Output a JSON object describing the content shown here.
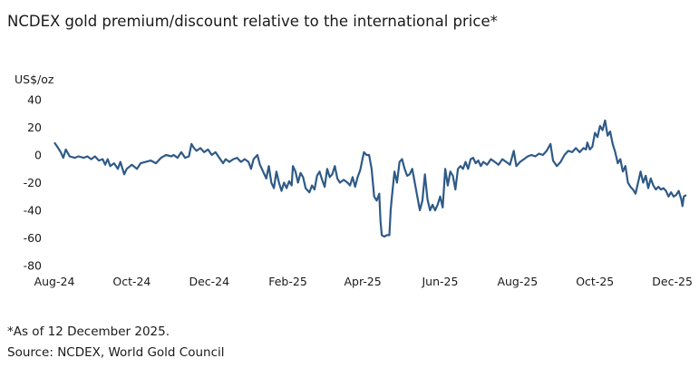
{
  "title": "NCDEX gold premium/discount relative to the international price*",
  "chart_data": {
    "type": "line",
    "title": "NCDEX gold premium/discount relative to the international price*",
    "ylabel": "US$/oz",
    "xlabel": "",
    "ylim": [
      -80,
      40
    ],
    "yticks": [
      40,
      20,
      0,
      -20,
      -40,
      -60,
      -80
    ],
    "xlim": [
      "2024-08-01",
      "2025-12-12"
    ],
    "xtick_labels": [
      "Aug-24",
      "Oct-24",
      "Dec-24",
      "Feb-25",
      "Apr-25",
      "Jun-25",
      "Aug-25",
      "Oct-25",
      "Dec-25"
    ],
    "xtick_dates": [
      "2024-08-01",
      "2024-10-01",
      "2024-12-01",
      "2025-02-01",
      "2025-04-01",
      "2025-06-01",
      "2025-08-01",
      "2025-10-01",
      "2025-12-01"
    ],
    "grid": false,
    "line_color": "#2e5a87",
    "series": [
      {
        "name": "",
        "points": [
          [
            "2024-08-01",
            9
          ],
          [
            "2024-08-04",
            5
          ],
          [
            "2024-08-06",
            2
          ],
          [
            "2024-08-08",
            -2
          ],
          [
            "2024-08-10",
            4
          ],
          [
            "2024-08-13",
            -1
          ],
          [
            "2024-08-17",
            -2
          ],
          [
            "2024-08-20",
            -1
          ],
          [
            "2024-08-24",
            -2
          ],
          [
            "2024-08-27",
            -1
          ],
          [
            "2024-08-30",
            -3
          ],
          [
            "2024-09-02",
            -1
          ],
          [
            "2024-09-05",
            -4
          ],
          [
            "2024-09-08",
            -3
          ],
          [
            "2024-09-10",
            -7
          ],
          [
            "2024-09-12",
            -3
          ],
          [
            "2024-09-14",
            -8
          ],
          [
            "2024-09-17",
            -6
          ],
          [
            "2024-09-20",
            -10
          ],
          [
            "2024-09-22",
            -5
          ],
          [
            "2024-09-25",
            -14
          ],
          [
            "2024-09-27",
            -10
          ],
          [
            "2024-10-01",
            -7
          ],
          [
            "2024-10-05",
            -10
          ],
          [
            "2024-10-08",
            -6
          ],
          [
            "2024-10-12",
            -5
          ],
          [
            "2024-10-16",
            -4
          ],
          [
            "2024-10-20",
            -6
          ],
          [
            "2024-10-24",
            -2
          ],
          [
            "2024-10-28",
            0
          ],
          [
            "2024-11-01",
            -1
          ],
          [
            "2024-11-03",
            0
          ],
          [
            "2024-11-06",
            -2
          ],
          [
            "2024-11-09",
            2
          ],
          [
            "2024-11-12",
            -2
          ],
          [
            "2024-11-15",
            -1
          ],
          [
            "2024-11-17",
            8
          ],
          [
            "2024-11-19",
            5
          ],
          [
            "2024-11-21",
            3
          ],
          [
            "2024-11-24",
            5
          ],
          [
            "2024-11-27",
            2
          ],
          [
            "2024-11-30",
            4
          ],
          [
            "2024-12-03",
            0
          ],
          [
            "2024-12-06",
            2
          ],
          [
            "2024-12-09",
            -2
          ],
          [
            "2024-12-12",
            -6
          ],
          [
            "2024-12-14",
            -3
          ],
          [
            "2024-12-17",
            -5
          ],
          [
            "2024-12-20",
            -3
          ],
          [
            "2024-12-23",
            -2
          ],
          [
            "2024-12-26",
            -5
          ],
          [
            "2024-12-29",
            -3
          ],
          [
            "2025-01-01",
            -5
          ],
          [
            "2025-01-03",
            -10
          ],
          [
            "2025-01-05",
            -3
          ],
          [
            "2025-01-08",
            0
          ],
          [
            "2025-01-10",
            -7
          ],
          [
            "2025-01-13",
            -13
          ],
          [
            "2025-01-15",
            -17
          ],
          [
            "2025-01-17",
            -8
          ],
          [
            "2025-01-19",
            -20
          ],
          [
            "2025-01-21",
            -24
          ],
          [
            "2025-01-23",
            -12
          ],
          [
            "2025-01-25",
            -20
          ],
          [
            "2025-01-27",
            -26
          ],
          [
            "2025-01-29",
            -20
          ],
          [
            "2025-01-31",
            -24
          ],
          [
            "2025-02-02",
            -19
          ],
          [
            "2025-02-04",
            -22
          ],
          [
            "2025-02-05",
            -8
          ],
          [
            "2025-02-07",
            -12
          ],
          [
            "2025-02-09",
            -20
          ],
          [
            "2025-02-11",
            -13
          ],
          [
            "2025-02-13",
            -16
          ],
          [
            "2025-02-15",
            -24
          ],
          [
            "2025-02-18",
            -27
          ],
          [
            "2025-02-20",
            -22
          ],
          [
            "2025-02-22",
            -25
          ],
          [
            "2025-02-24",
            -15
          ],
          [
            "2025-02-26",
            -12
          ],
          [
            "2025-02-28",
            -18
          ],
          [
            "2025-03-02",
            -23
          ],
          [
            "2025-03-04",
            -10
          ],
          [
            "2025-03-06",
            -16
          ],
          [
            "2025-03-08",
            -14
          ],
          [
            "2025-03-10",
            -8
          ],
          [
            "2025-03-12",
            -17
          ],
          [
            "2025-03-14",
            -20
          ],
          [
            "2025-03-17",
            -18
          ],
          [
            "2025-03-20",
            -20
          ],
          [
            "2025-03-22",
            -22
          ],
          [
            "2025-03-24",
            -16
          ],
          [
            "2025-03-26",
            -23
          ],
          [
            "2025-03-28",
            -16
          ],
          [
            "2025-03-30",
            -11
          ],
          [
            "2025-04-01",
            -2
          ],
          [
            "2025-04-02",
            2
          ],
          [
            "2025-04-04",
            0
          ],
          [
            "2025-04-06",
            0
          ],
          [
            "2025-04-08",
            -10
          ],
          [
            "2025-04-10",
            -30
          ],
          [
            "2025-04-12",
            -33
          ],
          [
            "2025-04-14",
            -28
          ],
          [
            "2025-04-15",
            -48
          ],
          [
            "2025-04-16",
            -58
          ],
          [
            "2025-04-18",
            -59
          ],
          [
            "2025-04-20",
            -58
          ],
          [
            "2025-04-22",
            -58
          ],
          [
            "2025-04-23",
            -40
          ],
          [
            "2025-04-24",
            -30
          ],
          [
            "2025-04-26",
            -12
          ],
          [
            "2025-04-28",
            -20
          ],
          [
            "2025-04-30",
            -5
          ],
          [
            "2025-05-02",
            -3
          ],
          [
            "2025-05-04",
            -10
          ],
          [
            "2025-05-06",
            -15
          ],
          [
            "2025-05-08",
            -14
          ],
          [
            "2025-05-10",
            -10
          ],
          [
            "2025-05-12",
            -20
          ],
          [
            "2025-05-14",
            -30
          ],
          [
            "2025-05-16",
            -40
          ],
          [
            "2025-05-18",
            -33
          ],
          [
            "2025-05-20",
            -14
          ],
          [
            "2025-05-22",
            -32
          ],
          [
            "2025-05-24",
            -40
          ],
          [
            "2025-05-26",
            -36
          ],
          [
            "2025-05-28",
            -40
          ],
          [
            "2025-05-30",
            -36
          ],
          [
            "2025-06-01",
            -30
          ],
          [
            "2025-06-03",
            -38
          ],
          [
            "2025-06-05",
            -10
          ],
          [
            "2025-06-07",
            -22
          ],
          [
            "2025-06-09",
            -12
          ],
          [
            "2025-06-11",
            -15
          ],
          [
            "2025-06-13",
            -25
          ],
          [
            "2025-06-15",
            -10
          ],
          [
            "2025-06-17",
            -8
          ],
          [
            "2025-06-19",
            -10
          ],
          [
            "2025-06-21",
            -5
          ],
          [
            "2025-06-23",
            -10
          ],
          [
            "2025-06-25",
            -3
          ],
          [
            "2025-06-27",
            -2
          ],
          [
            "2025-06-29",
            -6
          ],
          [
            "2025-07-01",
            -4
          ],
          [
            "2025-07-03",
            -8
          ],
          [
            "2025-07-05",
            -5
          ],
          [
            "2025-07-08",
            -7
          ],
          [
            "2025-07-11",
            -3
          ],
          [
            "2025-07-14",
            -5
          ],
          [
            "2025-07-17",
            -7
          ],
          [
            "2025-07-20",
            -3
          ],
          [
            "2025-07-23",
            -5
          ],
          [
            "2025-07-26",
            -7
          ],
          [
            "2025-07-29",
            3
          ],
          [
            "2025-07-31",
            -8
          ],
          [
            "2025-08-03",
            -5
          ],
          [
            "2025-08-06",
            -3
          ],
          [
            "2025-08-09",
            -1
          ],
          [
            "2025-08-12",
            0
          ],
          [
            "2025-08-15",
            -1
          ],
          [
            "2025-08-18",
            1
          ],
          [
            "2025-08-21",
            0
          ],
          [
            "2025-08-24",
            3
          ],
          [
            "2025-08-27",
            8
          ],
          [
            "2025-08-29",
            -4
          ],
          [
            "2025-09-01",
            -8
          ],
          [
            "2025-09-04",
            -5
          ],
          [
            "2025-09-07",
            0
          ],
          [
            "2025-09-10",
            3
          ],
          [
            "2025-09-13",
            2
          ],
          [
            "2025-09-16",
            5
          ],
          [
            "2025-09-19",
            2
          ],
          [
            "2025-09-22",
            5
          ],
          [
            "2025-09-24",
            4
          ],
          [
            "2025-09-25",
            9
          ],
          [
            "2025-09-27",
            4
          ],
          [
            "2025-09-29",
            6
          ],
          [
            "2025-10-01",
            16
          ],
          [
            "2025-10-03",
            13
          ],
          [
            "2025-10-05",
            21
          ],
          [
            "2025-10-07",
            18
          ],
          [
            "2025-10-09",
            25
          ],
          [
            "2025-10-11",
            14
          ],
          [
            "2025-10-13",
            17
          ],
          [
            "2025-10-15",
            8
          ],
          [
            "2025-10-17",
            2
          ],
          [
            "2025-10-19",
            -6
          ],
          [
            "2025-10-21",
            -3
          ],
          [
            "2025-10-23",
            -12
          ],
          [
            "2025-10-25",
            -8
          ],
          [
            "2025-10-27",
            -20
          ],
          [
            "2025-10-29",
            -23
          ],
          [
            "2025-10-31",
            -25
          ],
          [
            "2025-11-02",
            -28
          ],
          [
            "2025-11-04",
            -20
          ],
          [
            "2025-11-06",
            -12
          ],
          [
            "2025-11-08",
            -20
          ],
          [
            "2025-11-10",
            -15
          ],
          [
            "2025-11-12",
            -24
          ],
          [
            "2025-11-14",
            -17
          ],
          [
            "2025-11-16",
            -22
          ],
          [
            "2025-11-18",
            -25
          ],
          [
            "2025-11-20",
            -23
          ],
          [
            "2025-11-22",
            -25
          ],
          [
            "2025-11-24",
            -24
          ],
          [
            "2025-11-26",
            -26
          ],
          [
            "2025-11-28",
            -30
          ],
          [
            "2025-11-30",
            -27
          ],
          [
            "2025-12-02",
            -30
          ],
          [
            "2025-12-04",
            -29
          ],
          [
            "2025-12-06",
            -26
          ],
          [
            "2025-12-08",
            -32
          ],
          [
            "2025-12-09",
            -37
          ],
          [
            "2025-12-10",
            -30
          ],
          [
            "2025-12-12",
            -29
          ]
        ]
      }
    ]
  },
  "footnote": "*As of 12 December 2025.",
  "source": "Source: NCDEX, World Gold Council"
}
